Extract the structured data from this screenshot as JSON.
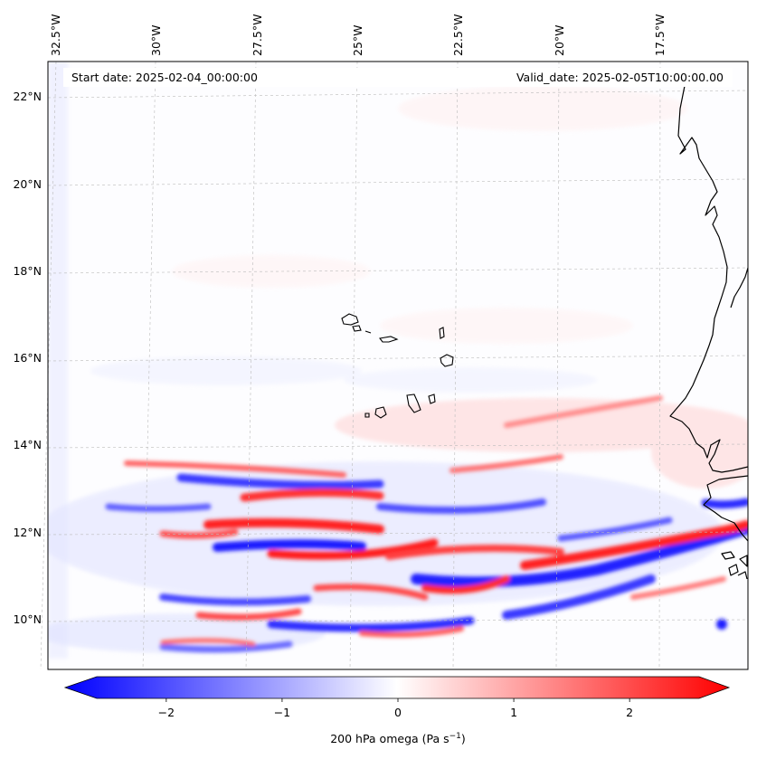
{
  "map": {
    "start_date_label": "Start date: 2025-02-04_00:00:00",
    "valid_date_label": "Valid_date: 2025-02-05T10:00:00.00",
    "lon_labels": [
      "32.5°W",
      "30°W",
      "27.5°W",
      "25°W",
      "22.5°W",
      "20°W",
      "17.5°W"
    ],
    "lat_labels": [
      "22°N",
      "20°N",
      "18°N",
      "16°N",
      "14°N",
      "12°N",
      "10°N"
    ],
    "field": "200 hPa omega",
    "islands": "Cape Verde",
    "coastline": "West Africa"
  },
  "colorbar": {
    "label_prefix": "200 hPa omega (Pa s",
    "label_exp": "−1",
    "label_suffix": ")",
    "ticks": [
      "−2",
      "−1",
      "0",
      "1",
      "2"
    ],
    "tick_values": [
      -2,
      -1,
      0,
      1,
      2
    ],
    "range": [
      -2.6,
      2.6
    ],
    "extend": "both",
    "cmap": "bwr",
    "colors": {
      "neg": "#0000ff",
      "mid": "#ffffff",
      "pos": "#ff0000"
    }
  }
}
